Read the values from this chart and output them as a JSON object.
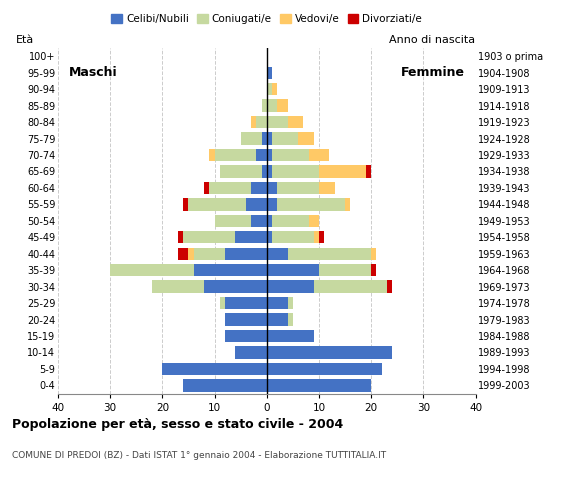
{
  "age_groups": [
    "0-4",
    "5-9",
    "10-14",
    "15-19",
    "20-24",
    "25-29",
    "30-34",
    "35-39",
    "40-44",
    "45-49",
    "50-54",
    "55-59",
    "60-64",
    "65-69",
    "70-74",
    "75-79",
    "80-84",
    "85-89",
    "90-94",
    "95-99",
    "100+"
  ],
  "birth_years": [
    "1999-2003",
    "1994-1998",
    "1989-1993",
    "1984-1988",
    "1979-1983",
    "1974-1978",
    "1969-1973",
    "1964-1968",
    "1959-1963",
    "1954-1958",
    "1949-1953",
    "1944-1948",
    "1939-1943",
    "1934-1938",
    "1929-1933",
    "1924-1928",
    "1919-1923",
    "1914-1918",
    "1909-1913",
    "1904-1908",
    "1903 o prima"
  ],
  "colors": {
    "celibe": "#4472c4",
    "coniugato": "#c6d9a0",
    "vedovo": "#ffc966",
    "divorziato": "#cc0000"
  },
  "maschi": {
    "celibe": [
      16,
      20,
      6,
      8,
      8,
      8,
      12,
      14,
      8,
      6,
      3,
      4,
      3,
      1,
      2,
      1,
      0,
      0,
      0,
      0,
      0
    ],
    "coniugato": [
      0,
      0,
      0,
      0,
      0,
      1,
      10,
      16,
      6,
      10,
      7,
      11,
      8,
      8,
      8,
      4,
      2,
      1,
      0,
      0,
      0
    ],
    "vedovo": [
      0,
      0,
      0,
      0,
      0,
      0,
      0,
      0,
      1,
      0,
      0,
      0,
      0,
      0,
      1,
      0,
      1,
      0,
      0,
      0,
      0
    ],
    "divorziato": [
      0,
      0,
      0,
      0,
      0,
      0,
      0,
      0,
      2,
      1,
      0,
      1,
      1,
      0,
      0,
      0,
      0,
      0,
      0,
      0,
      0
    ]
  },
  "femmine": {
    "celibe": [
      20,
      22,
      24,
      9,
      4,
      4,
      9,
      10,
      4,
      1,
      1,
      2,
      2,
      1,
      1,
      1,
      0,
      0,
      0,
      1,
      0
    ],
    "coniugato": [
      0,
      0,
      0,
      0,
      1,
      1,
      14,
      10,
      16,
      8,
      7,
      13,
      8,
      9,
      7,
      5,
      4,
      2,
      1,
      0,
      0
    ],
    "vedovo": [
      0,
      0,
      0,
      0,
      0,
      0,
      0,
      0,
      1,
      1,
      2,
      1,
      3,
      9,
      4,
      3,
      3,
      2,
      1,
      0,
      0
    ],
    "divorziato": [
      0,
      0,
      0,
      0,
      0,
      0,
      1,
      1,
      0,
      1,
      0,
      0,
      0,
      1,
      0,
      0,
      0,
      0,
      0,
      0,
      0
    ]
  },
  "xlim": 40,
  "xticks": [
    -40,
    -30,
    -20,
    -10,
    0,
    10,
    20,
    30,
    40
  ],
  "xticklabels": [
    "40",
    "30",
    "20",
    "10",
    "0",
    "10",
    "20",
    "30",
    "40"
  ],
  "title": "Popolazione per età, sesso e stato civile - 2004",
  "subtitle": "COMUNE DI PREDOI (BZ) - Dati ISTAT 1° gennaio 2004 - Elaborazione TUTTITALIA.IT",
  "ylabel_left": "Età",
  "ylabel_right": "Anno di nascita",
  "label_maschi": "Maschi",
  "label_femmine": "Femmine",
  "legend_labels": [
    "Celibi/Nubili",
    "Coniugati/e",
    "Vedovi/e",
    "Divorziati/e"
  ],
  "bg_color": "#ffffff",
  "grid_color": "#cccccc"
}
